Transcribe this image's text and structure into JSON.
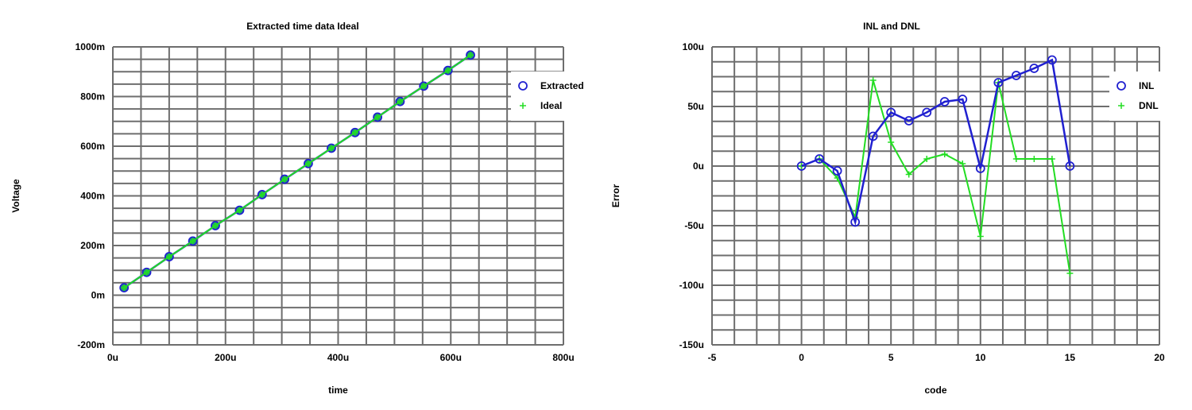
{
  "chart_data": [
    {
      "type": "line",
      "title": "Extracted time data Ideal",
      "xlabel": "time",
      "ylabel": "Voltage",
      "xlim": [
        0,
        0.0008
      ],
      "ylim": [
        -0.2,
        1.0
      ],
      "grid": true,
      "legend": "top-right",
      "x_ticks": [
        {
          "value": 0,
          "label": "0u"
        },
        {
          "value": 0.0002,
          "label": "200u"
        },
        {
          "value": 0.0004,
          "label": "400u"
        },
        {
          "value": 0.0006,
          "label": "600u"
        },
        {
          "value": 0.0008,
          "label": "800u"
        }
      ],
      "y_ticks": [
        {
          "value": -0.2,
          "label": "-200m"
        },
        {
          "value": 0,
          "label": "0m"
        },
        {
          "value": 0.2,
          "label": "200m"
        },
        {
          "value": 0.4,
          "label": "400m"
        },
        {
          "value": 0.6,
          "label": "600m"
        },
        {
          "value": 0.8,
          "label": "800m"
        },
        {
          "value": 1.0,
          "label": "1000m"
        }
      ],
      "series": [
        {
          "name": "Extracted",
          "marker": "circle",
          "color": "#2020d0",
          "x": [
            2e-05,
            6e-05,
            0.0001,
            0.000142,
            0.000182,
            0.000225,
            0.000265,
            0.000305,
            0.000347,
            0.000388,
            0.00043,
            0.00047,
            0.00051,
            0.000552,
            0.000595,
            0.000635
          ],
          "y": [
            0.03,
            0.092,
            0.155,
            0.218,
            0.28,
            0.342,
            0.405,
            0.467,
            0.53,
            0.592,
            0.655,
            0.717,
            0.78,
            0.842,
            0.905,
            0.967
          ]
        },
        {
          "name": "Ideal",
          "marker": "plus",
          "color": "#22dd22",
          "x": [
            2e-05,
            6e-05,
            0.0001,
            0.000142,
            0.000182,
            0.000225,
            0.000265,
            0.000305,
            0.000347,
            0.000388,
            0.00043,
            0.00047,
            0.00051,
            0.000552,
            0.000595,
            0.000635
          ],
          "y": [
            0.03,
            0.092,
            0.155,
            0.218,
            0.28,
            0.342,
            0.405,
            0.467,
            0.53,
            0.592,
            0.655,
            0.717,
            0.78,
            0.842,
            0.905,
            0.967
          ]
        }
      ]
    },
    {
      "type": "line",
      "title": "INL and DNL",
      "xlabel": "code",
      "ylabel": "Error",
      "xlim": [
        -5,
        20
      ],
      "ylim": [
        -0.00015,
        0.0001
      ],
      "grid": true,
      "legend": "top-right",
      "x_ticks": [
        {
          "value": -5,
          "label": "-5"
        },
        {
          "value": 0,
          "label": "0"
        },
        {
          "value": 5,
          "label": "5"
        },
        {
          "value": 10,
          "label": "10"
        },
        {
          "value": 15,
          "label": "15"
        },
        {
          "value": 20,
          "label": "20"
        }
      ],
      "y_ticks": [
        {
          "value": -0.00015,
          "label": "-150u"
        },
        {
          "value": -0.0001,
          "label": "-100u"
        },
        {
          "value": -5e-05,
          "label": "-50u"
        },
        {
          "value": 0,
          "label": "0u"
        },
        {
          "value": 5e-05,
          "label": "50u"
        },
        {
          "value": 0.0001,
          "label": "100u"
        }
      ],
      "series": [
        {
          "name": "INL",
          "marker": "circle",
          "color": "#2020d0",
          "x": [
            0,
            1,
            2,
            3,
            4,
            5,
            6,
            7,
            8,
            9,
            10,
            11,
            12,
            13,
            14,
            15
          ],
          "y": [
            0,
            6e-06,
            -4e-06,
            -4.7e-05,
            2.5e-05,
            4.5e-05,
            3.8e-05,
            4.5e-05,
            5.4e-05,
            5.6e-05,
            -2e-06,
            7e-05,
            7.6e-05,
            8.2e-05,
            8.9e-05,
            0
          ]
        },
        {
          "name": "DNL",
          "marker": "plus",
          "color": "#22dd22",
          "x": [
            0,
            1,
            2,
            3,
            4,
            5,
            6,
            7,
            8,
            9,
            10,
            11,
            12,
            13,
            14,
            15
          ],
          "y": [
            0,
            6e-06,
            -1e-05,
            -4.3e-05,
            7.2e-05,
            2e-05,
            -7e-06,
            6e-06,
            1e-05,
            2e-06,
            -5.9e-05,
            7e-05,
            6e-06,
            6e-06,
            6e-06,
            -9e-05
          ]
        }
      ]
    }
  ]
}
